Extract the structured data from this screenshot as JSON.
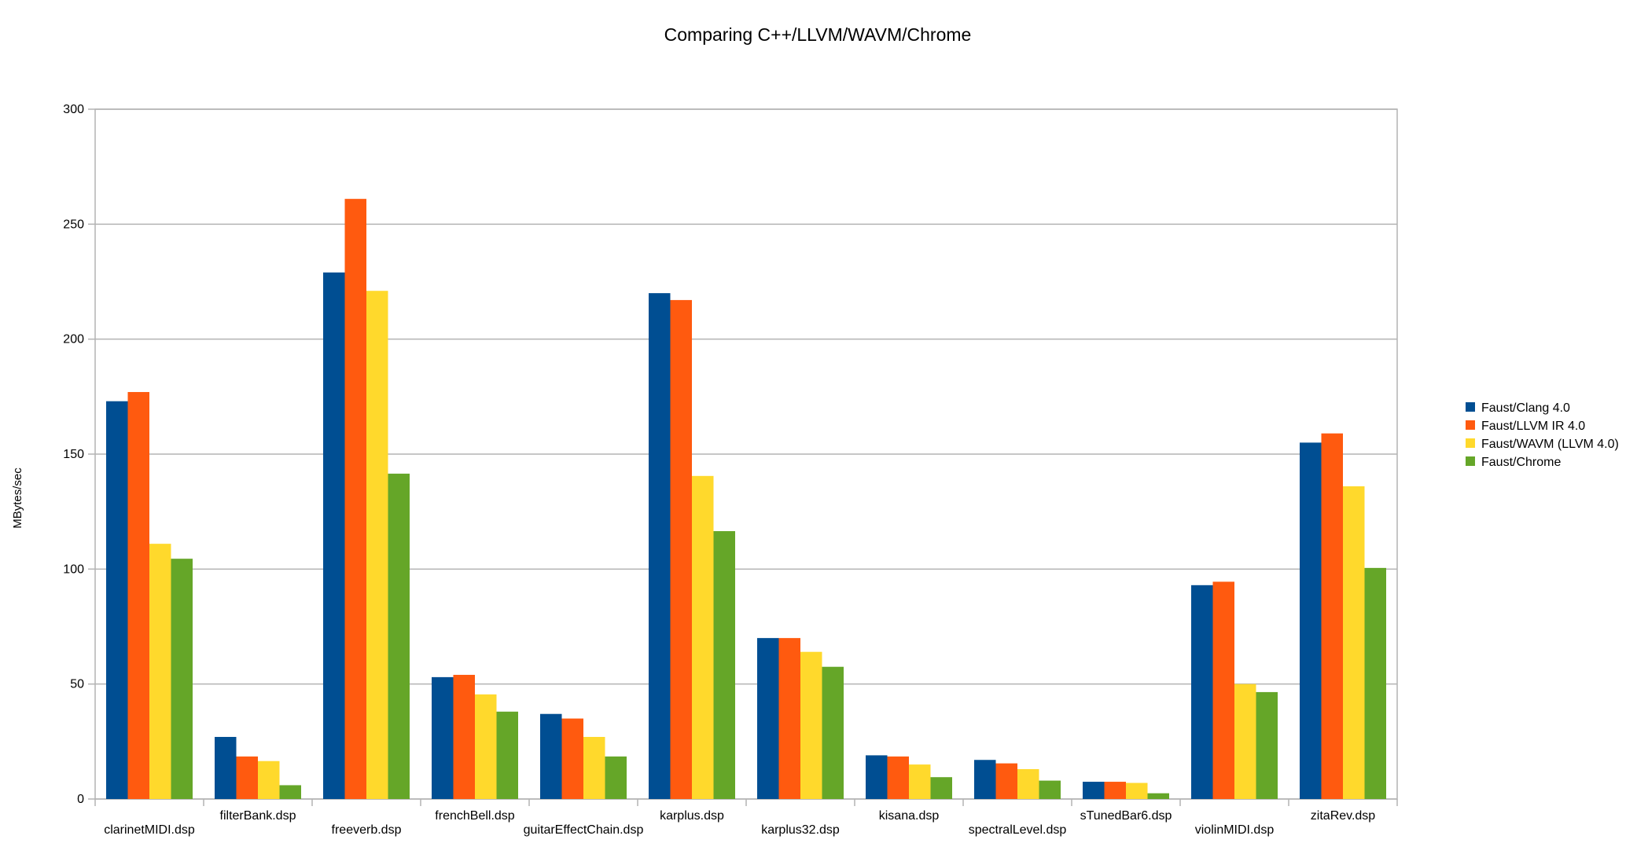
{
  "chart_data": {
    "type": "bar",
    "title": "Comparing C++/LLVM/WAVM/Chrome",
    "xlabel": "",
    "ylabel": "MBytes/sec",
    "ylim": [
      0,
      300
    ],
    "yticks": [
      0,
      50,
      100,
      150,
      200,
      250,
      300
    ],
    "grid": true,
    "legend_position": "right",
    "categories": [
      "clarinetMIDI.dsp",
      "filterBank.dsp",
      "freeverb.dsp",
      "frenchBell.dsp",
      "guitarEffectChain.dsp",
      "karplus.dsp",
      "karplus32.dsp",
      "kisana.dsp",
      "spectralLevel.dsp",
      "sTunedBar6.dsp",
      "violinMIDI.dsp",
      "zitaRev.dsp"
    ],
    "series": [
      {
        "name": "Faust/Clang 4.0",
        "color": "#004e92",
        "values": [
          173,
          27,
          229,
          53,
          37,
          220,
          70,
          19,
          17,
          7.5,
          93,
          155
        ]
      },
      {
        "name": "Faust/LLVM IR 4.0",
        "color": "#ff5a0f",
        "values": [
          177,
          18.5,
          261,
          54,
          35,
          217,
          70,
          18.5,
          15.5,
          7.5,
          94.5,
          159
        ]
      },
      {
        "name": "Faust/WAVM (LLVM 4.0)",
        "color": "#ffd92c",
        "values": [
          111,
          16.5,
          221,
          45.5,
          27,
          140.5,
          64,
          15,
          13,
          7,
          50,
          136
        ]
      },
      {
        "name": "Faust/Chrome",
        "color": "#65a628",
        "values": [
          104.5,
          6,
          141.5,
          38,
          18.5,
          116.5,
          57.5,
          9.5,
          8,
          2.5,
          46.5,
          100.5
        ]
      }
    ]
  }
}
